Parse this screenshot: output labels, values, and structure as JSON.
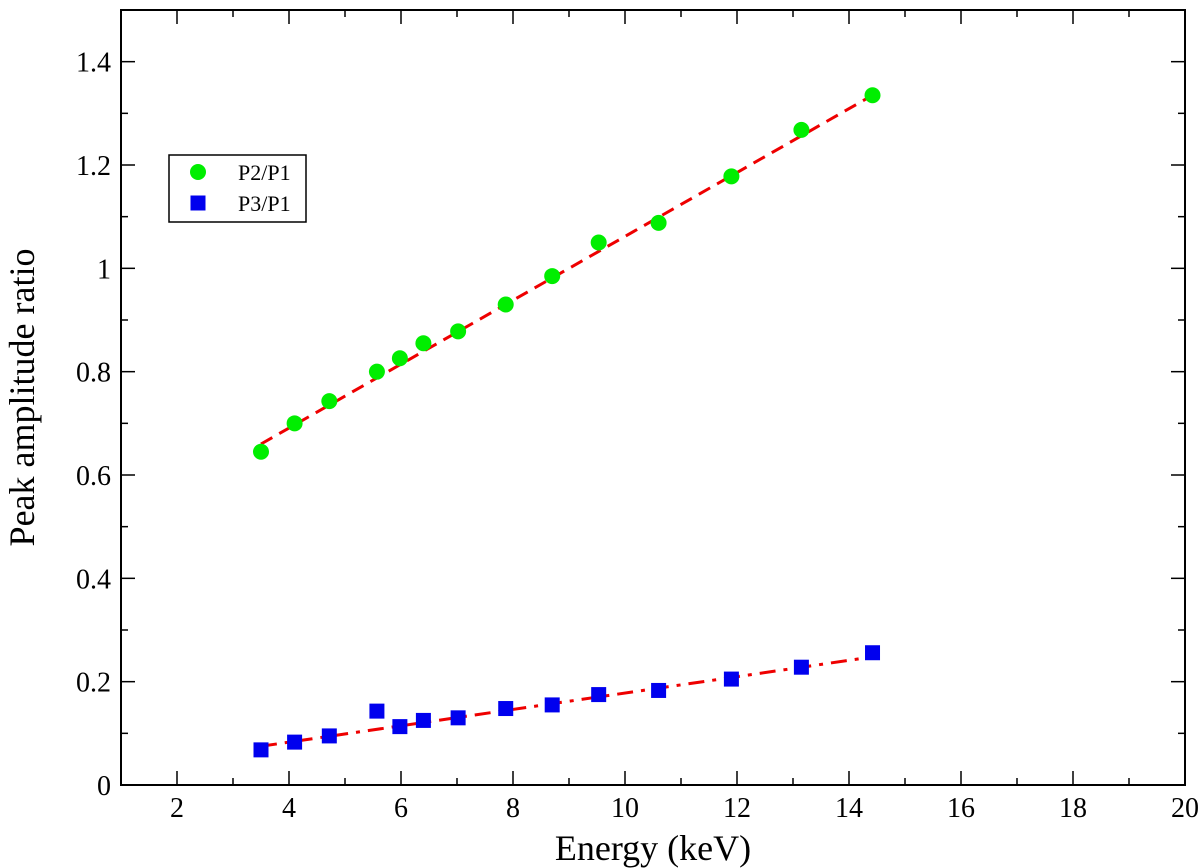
{
  "chart_data": {
    "type": "scatter",
    "title": "",
    "xlabel": "Energy  (keV)",
    "ylabel": "Peak amplitude ratio",
    "xlim": [
      1,
      20
    ],
    "ylim": [
      0,
      1.5
    ],
    "x_major_ticks": [
      2,
      4,
      6,
      8,
      10,
      12,
      14,
      16,
      18,
      20
    ],
    "x_tick_labels": [
      "2",
      "4",
      "6",
      "8",
      "10",
      "12",
      "14",
      "16",
      "18",
      "20"
    ],
    "x_minor_ticks": [
      1,
      3,
      5,
      7,
      9,
      11,
      13,
      15,
      17,
      19
    ],
    "y_major_ticks": [
      0,
      0.2,
      0.4,
      0.6,
      0.8,
      1.0,
      1.2,
      1.4
    ],
    "y_tick_labels": [
      "0",
      "0.2",
      "0.4",
      "0.6",
      "0.8",
      "1",
      "1.2",
      "1.4"
    ],
    "y_minor_ticks": [
      0.1,
      0.3,
      0.5,
      0.7,
      0.9,
      1.1,
      1.3,
      1.5
    ],
    "grid": false,
    "legend_position": "upper-left",
    "series": [
      {
        "name": "P2/P1",
        "marker": "circle",
        "color": "#00ee00",
        "x": [
          3.5,
          4.1,
          4.72,
          5.57,
          5.98,
          6.4,
          7.02,
          7.87,
          8.7,
          9.53,
          10.6,
          11.9,
          13.15,
          14.42
        ],
        "y": [
          0.645,
          0.7,
          0.743,
          0.8,
          0.826,
          0.855,
          0.878,
          0.93,
          0.985,
          1.05,
          1.088,
          1.178,
          1.268,
          1.335
        ]
      },
      {
        "name": "P3/P1",
        "marker": "square",
        "color": "#0000ee",
        "x": [
          3.5,
          4.1,
          4.72,
          5.57,
          5.98,
          6.4,
          7.02,
          7.87,
          8.7,
          9.53,
          10.6,
          11.9,
          13.15,
          14.42
        ],
        "y": [
          0.068,
          0.083,
          0.095,
          0.143,
          0.113,
          0.125,
          0.13,
          0.148,
          0.155,
          0.175,
          0.183,
          0.205,
          0.228,
          0.256
        ]
      }
    ],
    "fits": [
      {
        "name": "P2/P1 fit",
        "style": "dashed",
        "color": "#ee0000",
        "x": [
          3.5,
          14.42
        ],
        "y": [
          0.66,
          1.335
        ]
      },
      {
        "name": "P3/P1 fit",
        "style": "dash-dot",
        "color": "#ee0000",
        "x": [
          3.5,
          14.42
        ],
        "y": [
          0.075,
          0.248
        ]
      }
    ]
  }
}
